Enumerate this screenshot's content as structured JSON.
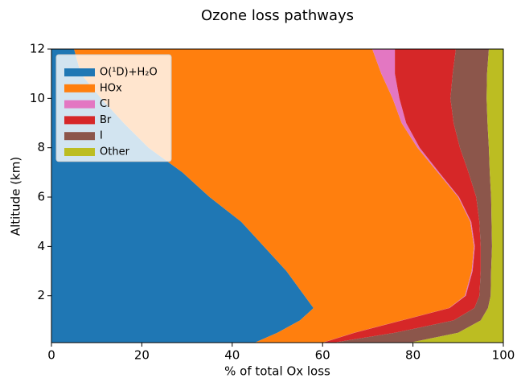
{
  "chart_data": {
    "type": "area",
    "orientation": "horizontal",
    "stacked": true,
    "title": "Ozone loss pathways",
    "xlabel": "% of total Ox loss",
    "ylabel": "Altitude (km)",
    "y": [
      0.1,
      0.5,
      1,
      1.5,
      2,
      3,
      4,
      5,
      6,
      7,
      8,
      9,
      10,
      11,
      12
    ],
    "series": [
      {
        "name": "O(¹D)+H₂O",
        "color": "#1f77b4",
        "values": [
          45,
          50,
          55,
          58,
          56,
          52,
          47,
          42,
          35,
          29,
          21.5,
          16,
          11,
          6.5,
          5
        ]
      },
      {
        "name": "HOx",
        "color": "#ff7f0e",
        "values": [
          15,
          17,
          22.5,
          30,
          35.5,
          41,
          46.5,
          50.7,
          55,
          56.5,
          59.5,
          61.5,
          64.5,
          66.5,
          66
        ]
      },
      {
        "name": "Cl",
        "color": "#e377c2",
        "values": [
          0.1,
          0.1,
          0.1,
          0.1,
          0.2,
          0.2,
          0.2,
          0.2,
          0.2,
          0.3,
          0.5,
          1,
          1.5,
          3,
          5
        ]
      },
      {
        "name": "Br",
        "color": "#d62728",
        "values": [
          2.4,
          8.9,
          11.4,
          5.5,
          3,
          1.8,
          1.3,
          1.8,
          3.8,
          6.5,
          8.9,
          10.5,
          11.3,
          12.8,
          13.5
        ]
      },
      {
        "name": "I",
        "color": "#8c564b",
        "values": [
          16.9,
          14,
          6,
          3,
          2.5,
          2.3,
          2.5,
          2.7,
          3.3,
          4.7,
          6.4,
          7.5,
          8,
          7.6,
          7.3
        ]
      },
      {
        "name": "Other",
        "color": "#bcbd22",
        "values": [
          20.6,
          10,
          5,
          3.4,
          2.8,
          2.7,
          2.5,
          2.6,
          2.7,
          3,
          3.2,
          3.5,
          3.7,
          3.6,
          3.2
        ]
      }
    ],
    "xlim": [
      0,
      100
    ],
    "xticks": [
      0,
      20,
      40,
      60,
      80,
      100
    ],
    "ylim": [
      0.1,
      12
    ],
    "yticks": [
      2,
      4,
      6,
      8,
      10,
      12
    ],
    "grid": false,
    "legend": "upper left"
  }
}
